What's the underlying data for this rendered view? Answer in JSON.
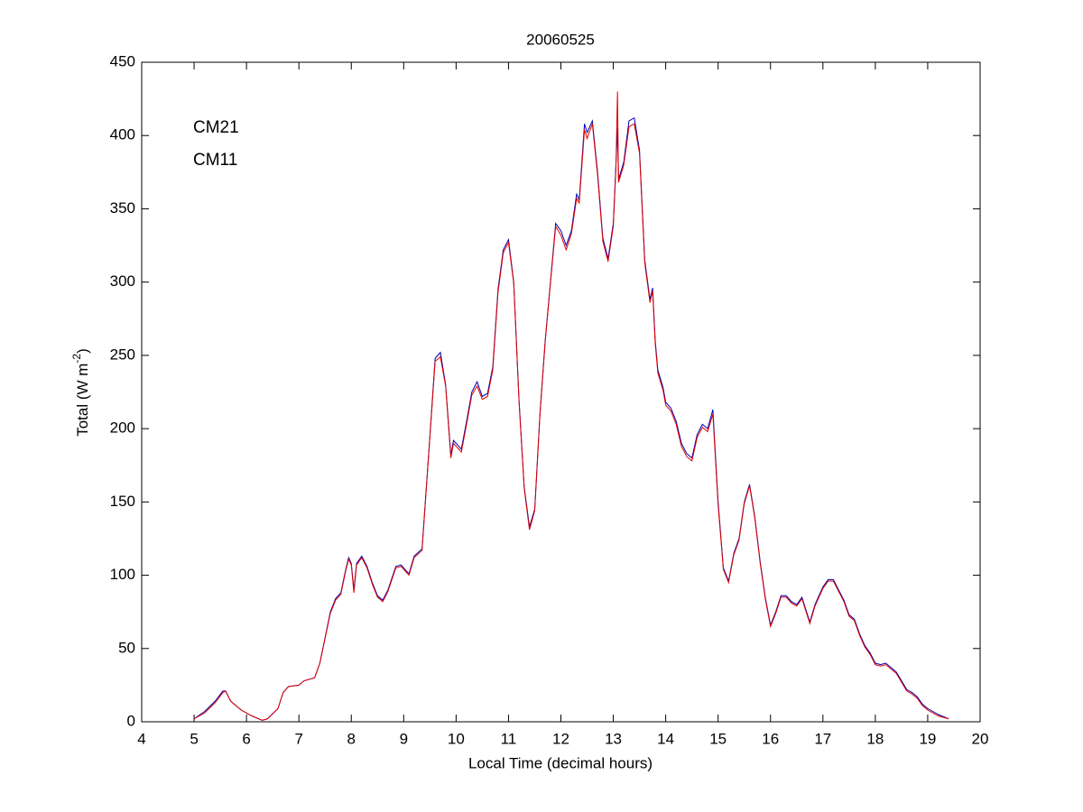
{
  "chart_data": {
    "type": "line",
    "title": "20060525",
    "xlabel": "Local Time (decimal hours)",
    "ylabel": [
      "Total (W m",
      "-2",
      ")"
    ],
    "xlim": [
      4,
      20
    ],
    "xticks": [
      4,
      5,
      6,
      7,
      8,
      9,
      10,
      11,
      12,
      13,
      14,
      15,
      16,
      17,
      18,
      19,
      20
    ],
    "ylim": [
      0,
      450
    ],
    "yticks": [
      0,
      50,
      100,
      150,
      200,
      250,
      300,
      350,
      400,
      450
    ],
    "grid": false,
    "legend": "upper left",
    "x": [
      5.0,
      5.2,
      5.4,
      5.55,
      5.6,
      5.7,
      5.9,
      6.1,
      6.3,
      6.4,
      6.6,
      6.7,
      6.8,
      7.0,
      7.1,
      7.3,
      7.4,
      7.6,
      7.7,
      7.8,
      7.9,
      7.95,
      8.0,
      8.05,
      8.1,
      8.2,
      8.3,
      8.4,
      8.5,
      8.6,
      8.7,
      8.85,
      8.95,
      9.1,
      9.2,
      9.35,
      9.5,
      9.6,
      9.7,
      9.8,
      9.9,
      9.95,
      10.1,
      10.2,
      10.3,
      10.4,
      10.5,
      10.6,
      10.7,
      10.8,
      10.9,
      11.0,
      11.1,
      11.2,
      11.3,
      11.4,
      11.5,
      11.6,
      11.7,
      11.8,
      11.9,
      12.0,
      12.1,
      12.2,
      12.3,
      12.35,
      12.45,
      12.5,
      12.6,
      12.7,
      12.8,
      12.9,
      13.0,
      13.05,
      13.08,
      13.1,
      13.2,
      13.3,
      13.4,
      13.5,
      13.6,
      13.7,
      13.75,
      13.8,
      13.85,
      13.95,
      14.0,
      14.1,
      14.2,
      14.3,
      14.4,
      14.5,
      14.6,
      14.7,
      14.8,
      14.9,
      15.0,
      15.1,
      15.2,
      15.3,
      15.4,
      15.5,
      15.6,
      15.7,
      15.8,
      15.9,
      16.0,
      16.1,
      16.2,
      16.3,
      16.4,
      16.5,
      16.6,
      16.75,
      16.85,
      17.0,
      17.1,
      17.2,
      17.3,
      17.4,
      17.5,
      17.6,
      17.7,
      17.8,
      17.9,
      18.0,
      18.1,
      18.2,
      18.3,
      18.4,
      18.5,
      18.6,
      18.7,
      18.8,
      18.9,
      19.0,
      19.2,
      19.4
    ],
    "series": [
      {
        "name": "CM21",
        "color": "#0000b4",
        "values": [
          2,
          7,
          14,
          21,
          21,
          14,
          8,
          4,
          1,
          2,
          9,
          20,
          24,
          25,
          28,
          30,
          40,
          75,
          84,
          88,
          105,
          112,
          108,
          90,
          108,
          113,
          106,
          95,
          86,
          83,
          90,
          106,
          107,
          101,
          113,
          118,
          195,
          248,
          252,
          230,
          182,
          192,
          186,
          205,
          225,
          232,
          222,
          224,
          242,
          295,
          322,
          329,
          300,
          220,
          160,
          133,
          145,
          210,
          260,
          300,
          340,
          335,
          325,
          335,
          360,
          356,
          408,
          402,
          410,
          375,
          330,
          316,
          340,
          380,
          405,
          370,
          382,
          410,
          412,
          390,
          315,
          288,
          296,
          260,
          240,
          228,
          218,
          214,
          205,
          190,
          183,
          180,
          196,
          203,
          200,
          213,
          150,
          105,
          96,
          115,
          125,
          150,
          162,
          140,
          110,
          85,
          66,
          75,
          86,
          86,
          82,
          80,
          85,
          68,
          80,
          92,
          97,
          97,
          90,
          83,
          73,
          70,
          60,
          52,
          47,
          40,
          39,
          40,
          37,
          34,
          28,
          22,
          20,
          17,
          12,
          9,
          5,
          2
        ]
      },
      {
        "name": "CM11",
        "color": "#e00000",
        "values": [
          2,
          6,
          13,
          20,
          21,
          14,
          8,
          4,
          1,
          2,
          9,
          20,
          24,
          25,
          28,
          30,
          40,
          74,
          83,
          87,
          104,
          111,
          107,
          88,
          107,
          112,
          105,
          94,
          85,
          82,
          89,
          105,
          106,
          100,
          112,
          117,
          194,
          246,
          249,
          229,
          180,
          190,
          184,
          203,
          223,
          229,
          220,
          222,
          240,
          293,
          320,
          327,
          299,
          219,
          159,
          131,
          144,
          209,
          259,
          299,
          338,
          332,
          322,
          333,
          357,
          354,
          404,
          398,
          408,
          373,
          328,
          314,
          338,
          378,
          430,
          368,
          380,
          406,
          408,
          388,
          313,
          286,
          294,
          258,
          238,
          226,
          216,
          212,
          203,
          188,
          181,
          178,
          194,
          201,
          198,
          210,
          148,
          104,
          95,
          114,
          124,
          149,
          161,
          139,
          109,
          84,
          65,
          74,
          85,
          85,
          81,
          79,
          84,
          67,
          79,
          91,
          96,
          96,
          89,
          82,
          72,
          69,
          59,
          51,
          46,
          39,
          38,
          39,
          36,
          33,
          27,
          21,
          19,
          16,
          11,
          8,
          4,
          2
        ]
      }
    ]
  }
}
